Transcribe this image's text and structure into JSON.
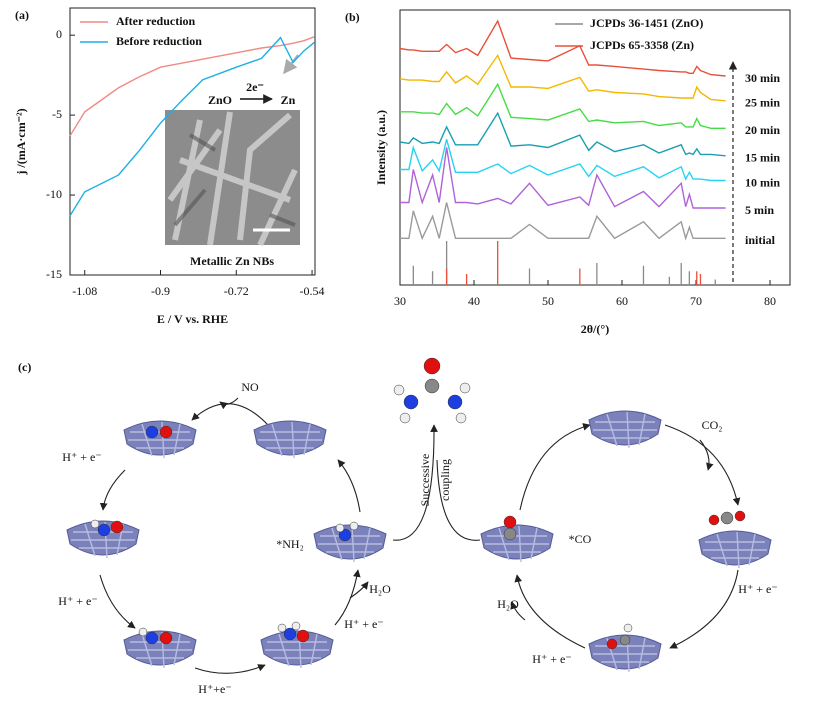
{
  "chart_data": [
    {
      "type": "line",
      "panel_label": "(a)",
      "x_label": "E / V vs. RHE",
      "y_label": "j /(mA·cm⁻²)",
      "x": [
        -1.115,
        -1.08,
        -1.0,
        -0.95,
        -0.9,
        -0.85,
        -0.8,
        -0.72,
        -0.66,
        -0.615,
        -0.585,
        -0.56,
        -0.535
      ],
      "series": [
        {
          "name": "After reduction",
          "color": "#f08a84",
          "values": [
            -6.3,
            -4.8,
            -3.3,
            -2.6,
            -2.0,
            -1.75,
            -1.5,
            -1.1,
            -0.8,
            -0.65,
            -0.5,
            -0.35,
            -0.1
          ]
        },
        {
          "name": "Before reduction",
          "color": "#1cb0e6",
          "values": [
            -11.3,
            -9.8,
            -8.75,
            -7.2,
            -5.5,
            -4.1,
            -2.8,
            -2.0,
            -1.45,
            -0.15,
            -1.7,
            -1.0,
            -0.45
          ]
        }
      ],
      "xlim": [
        -1.115,
        -0.533
      ],
      "xticks": [
        -1.08,
        -0.9,
        -0.72,
        -0.54
      ],
      "ylim": [
        -15,
        1.7
      ],
      "yticks": [
        0,
        -5,
        -10,
        -15
      ],
      "legend": "upper left",
      "annotations": {
        "reaction_label": "2e⁻",
        "reactant": "ZnO",
        "product": "Zn",
        "image_caption": "Metallic Zn NBs"
      }
    },
    {
      "type": "line",
      "panel_label": "(b)",
      "x_label": "2θ/(°)",
      "y_label": "Intensity (a.u.)",
      "x": [
        30,
        31.2,
        31.8,
        33,
        34.4,
        35.3,
        36.3,
        37.5,
        39,
        40.5,
        43.2,
        45,
        47.5,
        50,
        54.3,
        55.5,
        56.6,
        59,
        62.9,
        65,
        68,
        68.6,
        69.1,
        69.6,
        70.1,
        70.6,
        72,
        74
      ],
      "series": [
        {
          "name": "initial",
          "color": "#9a9a9a",
          "values": [
            17,
            17,
            27,
            17,
            25,
            17,
            30,
            17,
            17,
            17,
            17,
            17,
            22,
            17,
            17,
            17,
            25,
            17,
            23,
            17,
            23,
            17,
            21,
            17,
            17,
            17,
            17,
            17
          ]
        },
        {
          "name": "5 min",
          "color": "#b062d8",
          "values": [
            30,
            30,
            42,
            30,
            40,
            30,
            50,
            30,
            30,
            29.5,
            31.5,
            29.5,
            37,
            29,
            32,
            29,
            40,
            28.5,
            34,
            28.5,
            37,
            28.5,
            33,
            28,
            28,
            28,
            28,
            28
          ]
        },
        {
          "name": "10 min",
          "color": "#26d4f2",
          "values": [
            42,
            42,
            50,
            41.5,
            45.5,
            41.5,
            53,
            41,
            41,
            41,
            44,
            40.5,
            43.5,
            40,
            44,
            39.5,
            43.5,
            39.5,
            43,
            39,
            43,
            38.5,
            41,
            38.5,
            38.5,
            38.5,
            38,
            38
          ]
        },
        {
          "name": "15 min",
          "color": "#1a9fb2",
          "values": [
            52,
            51.5,
            53.5,
            51.5,
            52,
            51.5,
            57.5,
            51,
            51,
            51,
            62.5,
            50.5,
            51,
            50,
            54.5,
            49,
            52,
            48.5,
            51,
            48,
            51,
            47.5,
            48,
            47.5,
            49.5,
            47.5,
            47.5,
            47
          ]
        },
        {
          "name": "20 min",
          "color": "#46dc46",
          "values": [
            63,
            63,
            63,
            62.5,
            62.5,
            62,
            66,
            62,
            64.5,
            61.5,
            73,
            61,
            60.5,
            60,
            64,
            59.5,
            60,
            59,
            59.5,
            58,
            59,
            57.5,
            57.5,
            57.5,
            60.5,
            58,
            57,
            57
          ]
        },
        {
          "name": "25 min",
          "color": "#f4b800",
          "values": [
            75,
            74.5,
            74.5,
            74.5,
            74,
            74,
            77.5,
            73.5,
            76,
            73,
            83.5,
            72,
            72,
            71.5,
            75.5,
            70.5,
            71,
            70,
            69.5,
            68.5,
            68,
            68,
            68,
            68,
            72,
            70,
            67.5,
            67
          ]
        },
        {
          "name": "30 min",
          "color": "#e8503a",
          "values": [
            86,
            85.5,
            85.5,
            85,
            85,
            85,
            87.5,
            84.5,
            86,
            83.5,
            96,
            82.5,
            82,
            81.5,
            87,
            80,
            80,
            79.5,
            78.5,
            78,
            77.5,
            77.5,
            77,
            77,
            79.5,
            78,
            76.5,
            76
          ]
        }
      ],
      "references": [
        {
          "name": "JCPDs 36-1451 (ZnO)",
          "color": "#8a8a8a",
          "x": [
            31.8,
            34.4,
            36.3,
            47.5,
            56.6,
            62.9,
            66.4,
            68,
            69.1,
            72.6
          ],
          "values": [
            7,
            5,
            16,
            6,
            8,
            7,
            3,
            8,
            5,
            2
          ]
        },
        {
          "name": "JCPDs 65-3358 (Zn)",
          "color": "#e8503a",
          "x": [
            36.3,
            39,
            43.2,
            54.3,
            70.1,
            70.6
          ],
          "values": [
            6,
            4,
            16,
            6,
            5,
            4
          ]
        }
      ],
      "xlim": [
        30,
        82.7
      ],
      "xticks": [
        30,
        40,
        50,
        60,
        70,
        80
      ],
      "ylim": [
        0,
        100
      ],
      "legend": "line-end"
    }
  ],
  "diagram": {
    "panel_label": "(c)",
    "no_reduction": {
      "reactant": "NO",
      "steps": [
        "H⁺ + e⁻",
        "H⁺ + e⁻",
        "H⁺+e⁻",
        "H⁺ + e⁻"
      ],
      "water": "H₂O",
      "intermediate": "*NH₂"
    },
    "coupling": [
      "Successive",
      "coupling"
    ],
    "co2_reduction": {
      "reactant": "CO₂",
      "steps": [
        "H⁺ + e⁻",
        "H⁺ + e⁻"
      ],
      "water": "H₂O",
      "intermediate": "*CO"
    }
  }
}
